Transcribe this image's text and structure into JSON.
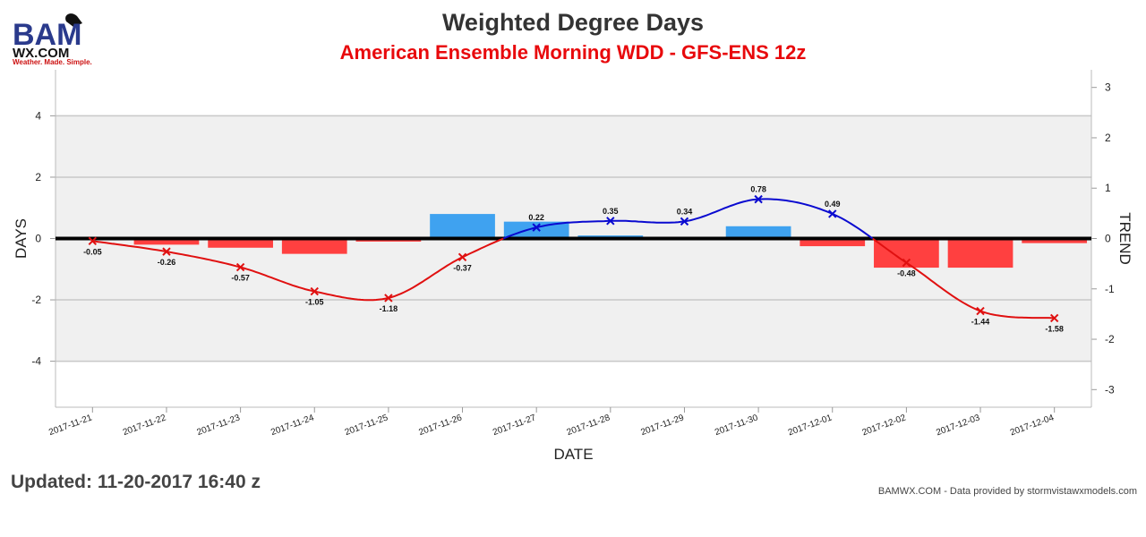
{
  "header": {
    "logo_text": "BAM",
    "logo_site": "WX.COM",
    "logo_tagline": "Weather. Made. Simple.",
    "title": "Weighted Degree Days",
    "subtitle": "American Ensemble Morning WDD - GFS-ENS 12z"
  },
  "footer": {
    "updated": "Updated: 11-20-2017 16:40 z",
    "credit": "BAMWX.COM - Data provided by stormvistawxmodels.com"
  },
  "colors": {
    "positive_bar": "#3fa2f0",
    "negative_bar": "#ff4040",
    "positive_trend": "#0a0ad0",
    "negative_trend": "#e01010",
    "band": "#f0f0f0",
    "zero_line": "#000000"
  },
  "chart_data": {
    "type": "bar",
    "xlabel": "DATE",
    "ylabel": "DAYS",
    "y2label": "TREND",
    "ylim": [
      -5.5,
      5.5
    ],
    "yticks": [
      -4,
      -2,
      0,
      2,
      4
    ],
    "y2lim": [
      -3.35,
      3.35
    ],
    "y2ticks": [
      -3,
      -2,
      -1,
      0,
      1,
      2,
      3
    ],
    "band": [
      -4,
      4
    ],
    "categories": [
      "2017-11-21",
      "2017-11-22",
      "2017-11-23",
      "2017-11-24",
      "2017-11-25",
      "2017-11-26",
      "2017-11-27",
      "2017-11-28",
      "2017-11-29",
      "2017-11-30",
      "2017-12-01",
      "2017-12-02",
      "2017-12-03",
      "2017-12-04"
    ],
    "series": [
      {
        "type": "bar",
        "axis": "left",
        "values": [
          0,
          -0.2,
          -0.3,
          -0.5,
          -0.1,
          0.8,
          0.55,
          0.1,
          0,
          0.4,
          -0.25,
          -0.95,
          -0.95,
          -0.15
        ]
      },
      {
        "type": "line",
        "axis": "right",
        "values": [
          -0.05,
          -0.26,
          -0.57,
          -1.05,
          -1.18,
          -0.37,
          0.22,
          0.35,
          0.34,
          0.78,
          0.49,
          -0.48,
          -1.44,
          -1.58
        ],
        "labels": [
          "-0.05",
          "-0.26",
          "-0.57",
          "-1.05",
          "-1.18",
          "-0.37",
          "0.22",
          "0.35",
          "0.34",
          "0.78",
          "0.49",
          "-0.48",
          "-1.44",
          "-1.58"
        ]
      }
    ]
  }
}
